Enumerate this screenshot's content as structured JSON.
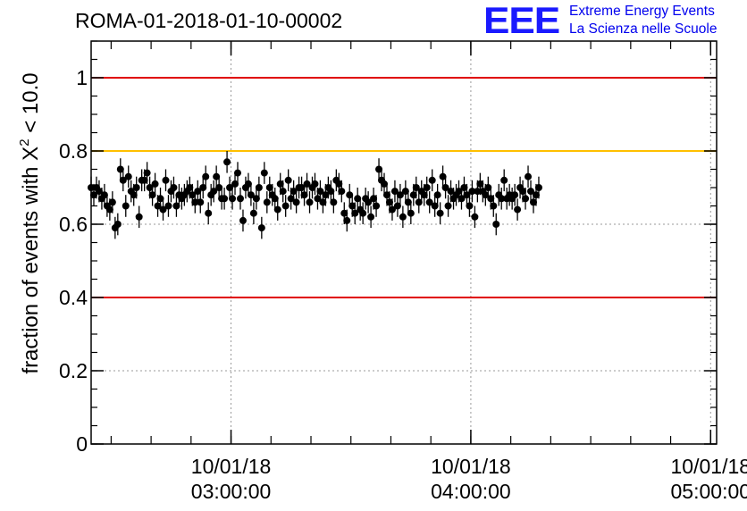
{
  "title": "ROMA-01-2018-01-10-00002",
  "logo": {
    "mark": "EEE",
    "line1": "Extreme Energy Events",
    "line2": "La Scienza nelle Scuole"
  },
  "chart_data": {
    "type": "scatter",
    "title": "ROMA-01-2018-01-10-00002",
    "ylabel_parts": {
      "prefix": "fraction of events with ",
      "symbol": "X",
      "exponent": "2",
      "suffix": " < 10.0"
    },
    "xlabel": "",
    "x_unit": "time (2018-01-10)",
    "xlim": [
      "02:25:00",
      "05:01:30"
    ],
    "ylim": [
      0,
      1.1
    ],
    "y_ticks": [
      "0",
      "0.2",
      "0.4",
      "0.6",
      "0.8",
      "1"
    ],
    "x_ticks": [
      {
        "time": "03:00:00",
        "date_label": "10/01/18",
        "time_label": "03:00:00"
      },
      {
        "time": "04:00:00",
        "date_label": "10/01/18",
        "time_label": "04:00:00"
      },
      {
        "time": "05:00:00",
        "date_label": "10/01/18",
        "time_label": "05:00:00"
      }
    ],
    "grid": true,
    "reference_lines": [
      {
        "y": 1.0,
        "color": "#e00000"
      },
      {
        "y": 0.8,
        "color": "#ffc000"
      },
      {
        "y": 0.4,
        "color": "#e00000"
      }
    ],
    "marker_color": "#000000",
    "series": [
      {
        "x_start": "02:25:00",
        "x_step_seconds": 40,
        "error": 0.03,
        "values": [
          0.7,
          0.68,
          0.7,
          0.69,
          0.67,
          0.68,
          0.65,
          0.64,
          0.66,
          0.59,
          0.6,
          0.75,
          0.72,
          0.65,
          0.73,
          0.69,
          0.68,
          0.7,
          0.62,
          0.72,
          0.72,
          0.74,
          0.7,
          0.68,
          0.71,
          0.65,
          0.67,
          0.64,
          0.72,
          0.65,
          0.69,
          0.7,
          0.65,
          0.68,
          0.67,
          0.68,
          0.69,
          0.7,
          0.68,
          0.66,
          0.69,
          0.66,
          0.7,
          0.73,
          0.63,
          0.68,
          0.69,
          0.73,
          0.7,
          0.67,
          0.67,
          0.77,
          0.7,
          0.67,
          0.71,
          0.74,
          0.67,
          0.61,
          0.7,
          0.71,
          0.68,
          0.63,
          0.67,
          0.7,
          0.59,
          0.74,
          0.66,
          0.7,
          0.68,
          0.67,
          0.64,
          0.71,
          0.69,
          0.65,
          0.72,
          0.67,
          0.69,
          0.66,
          0.7,
          0.7,
          0.68,
          0.71,
          0.66,
          0.7,
          0.71,
          0.67,
          0.69,
          0.66,
          0.68,
          0.7,
          0.69,
          0.66,
          0.72,
          0.71,
          0.69,
          0.63,
          0.61,
          0.68,
          0.65,
          0.63,
          0.67,
          0.64,
          0.63,
          0.67,
          0.66,
          0.62,
          0.67,
          0.65,
          0.75,
          0.72,
          0.71,
          0.68,
          0.66,
          0.64,
          0.69,
          0.65,
          0.68,
          0.62,
          0.69,
          0.66,
          0.63,
          0.68,
          0.7,
          0.66,
          0.69,
          0.68,
          0.7,
          0.66,
          0.72,
          0.65,
          0.68,
          0.63,
          0.73,
          0.7,
          0.65,
          0.69,
          0.67,
          0.68,
          0.69,
          0.67,
          0.7,
          0.68,
          0.65,
          0.69,
          0.62,
          0.69,
          0.71,
          0.69,
          0.68,
          0.7,
          0.67,
          0.65,
          0.6,
          0.68,
          0.67,
          0.72,
          0.67,
          0.68,
          0.67,
          0.68,
          0.64,
          0.7,
          0.69,
          0.67,
          0.73,
          0.69,
          0.66,
          0.68,
          0.7
        ]
      }
    ]
  }
}
